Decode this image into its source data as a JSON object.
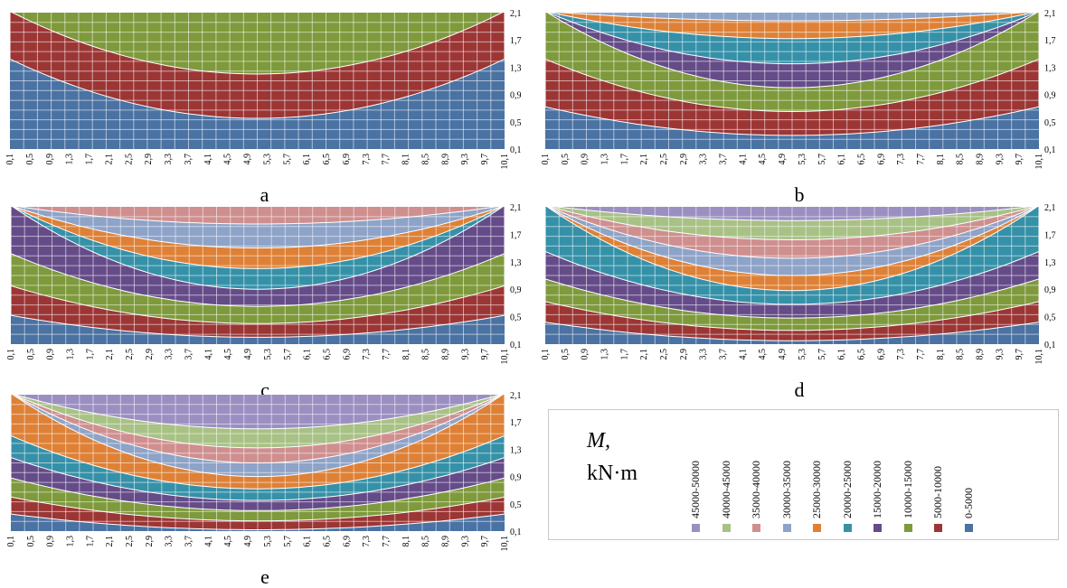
{
  "y_ticks": [
    "0,1",
    "0,5",
    "0,9",
    "1,3",
    "1,7",
    "2,1"
  ],
  "x_ticks": [
    "0,1",
    "0,5",
    "0,9",
    "1,3",
    "1,7",
    "2,1",
    "2,5",
    "2,9",
    "3,3",
    "3,7",
    "4,1",
    "4,5",
    "4,9",
    "5,3",
    "5,7",
    "6,1",
    "6,5",
    "6,9",
    "7,3",
    "7,7",
    "8,1",
    "8,5",
    "8,9",
    "9,3",
    "9,7",
    "10,1"
  ],
  "colors": [
    "#4a72a3",
    "#9c3635",
    "#7e9a3c",
    "#654c89",
    "#3591a8",
    "#de8137",
    "#8ea3c8",
    "#cf8f8f",
    "#a8c185",
    "#9b8fc2"
  ],
  "legend": {
    "title_symbol": "M,",
    "title_unit": "kN·m",
    "entries": [
      "45000-50000",
      "40000-45000",
      "35000-40000",
      "30000-35000",
      "25000-30000",
      "20000-25000",
      "15000-20000",
      "10000-15000",
      "5000-10000",
      "0-5000"
    ],
    "entry_colors": [
      "#9b8fc2",
      "#a8c185",
      "#cf8f8f",
      "#8ea3c8",
      "#de8137",
      "#3591a8",
      "#654c89",
      "#7e9a3c",
      "#9c3635",
      "#4a72a3"
    ]
  },
  "chart_data": [
    {
      "type": "heatmap",
      "label": "a",
      "x_range": [
        0.1,
        10.1
      ],
      "y_range": [
        0.1,
        2.1
      ],
      "max_band_upper_bound": 15000,
      "contour_heights": [
        [
          0.55,
          1.42
        ],
        [
          1.2,
          2.12
        ]
      ]
    },
    {
      "type": "heatmap",
      "label": "b",
      "x_range": [
        0.1,
        10.1
      ],
      "y_range": [
        0.1,
        2.1
      ],
      "max_band_upper_bound": 30000,
      "contour_heights": [
        [
          0.3,
          0.72
        ],
        [
          0.65,
          1.42
        ],
        [
          1.0,
          2.12
        ],
        [
          1.35,
          2.12
        ],
        [
          1.72,
          2.12
        ],
        [
          1.98,
          2.12
        ]
      ]
    },
    {
      "type": "heatmap",
      "label": "c",
      "x_range": [
        0.1,
        10.1
      ],
      "y_range": [
        0.1,
        2.1
      ],
      "max_band_upper_bound": 35000,
      "contour_heights": [
        [
          0.2,
          0.52
        ],
        [
          0.4,
          0.95
        ],
        [
          0.65,
          1.42
        ],
        [
          0.9,
          2.12
        ],
        [
          1.2,
          2.12
        ],
        [
          1.5,
          2.12
        ],
        [
          1.85,
          2.12
        ]
      ]
    },
    {
      "type": "heatmap",
      "label": "d",
      "x_range": [
        0.1,
        10.1
      ],
      "y_range": [
        0.1,
        2.1
      ],
      "max_band_upper_bound": 45000,
      "contour_heights": [
        [
          0.15,
          0.42
        ],
        [
          0.3,
          0.72
        ],
        [
          0.48,
          1.05
        ],
        [
          0.68,
          1.45
        ],
        [
          0.88,
          2.12
        ],
        [
          1.1,
          2.12
        ],
        [
          1.35,
          2.12
        ],
        [
          1.62,
          2.12
        ],
        [
          1.9,
          2.12
        ]
      ]
    },
    {
      "type": "heatmap",
      "label": "e",
      "x_range": [
        0.1,
        10.1
      ],
      "y_range": [
        0.1,
        2.1
      ],
      "max_band_upper_bound": 50000,
      "contour_heights": [
        [
          0.12,
          0.35
        ],
        [
          0.25,
          0.6
        ],
        [
          0.4,
          0.88
        ],
        [
          0.55,
          1.18
        ],
        [
          0.72,
          1.5
        ],
        [
          0.9,
          2.12
        ],
        [
          1.1,
          2.12
        ],
        [
          1.32,
          2.12
        ],
        [
          1.6,
          2.12
        ]
      ]
    }
  ]
}
